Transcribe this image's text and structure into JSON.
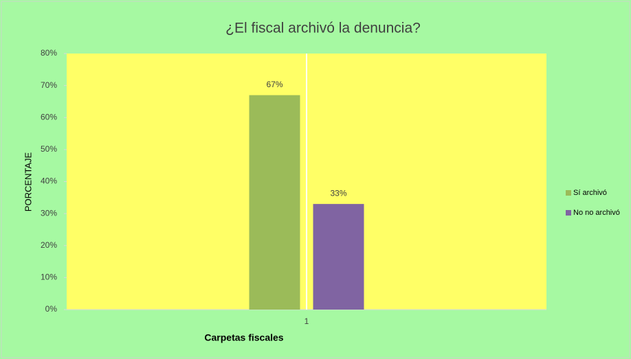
{
  "chart_data": {
    "type": "bar",
    "title": "¿El fiscal archivó la denuncia?",
    "xlabel": "Carpetas fiscales",
    "ylabel": "PORCENTAJE",
    "categories": [
      "1"
    ],
    "series": [
      {
        "name": "Sí archivó",
        "color": "#9bbb59",
        "values": [
          67
        ],
        "value_labels": [
          "67%"
        ]
      },
      {
        "name": "No no archivó",
        "color": "#8064a2",
        "values": [
          33
        ],
        "value_labels": [
          "33%"
        ]
      }
    ],
    "ylim": [
      0,
      80
    ],
    "yticks": [
      {
        "value": 0,
        "label": "0%"
      },
      {
        "value": 10,
        "label": "10%"
      },
      {
        "value": 20,
        "label": "20%"
      },
      {
        "value": 30,
        "label": "30%"
      },
      {
        "value": 40,
        "label": "40%"
      },
      {
        "value": 50,
        "label": "50%"
      },
      {
        "value": 60,
        "label": "60%"
      },
      {
        "value": 70,
        "label": "70%"
      },
      {
        "value": 80,
        "label": "80%"
      }
    ],
    "legend": "right"
  }
}
